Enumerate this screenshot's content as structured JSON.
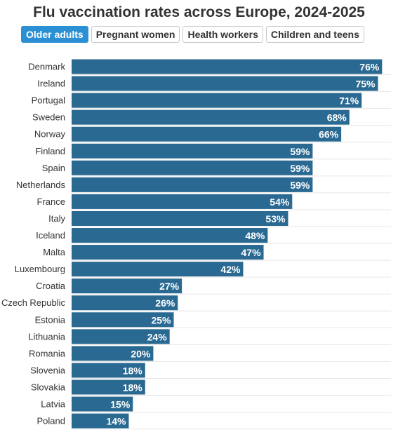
{
  "title": "Flu vaccination rates across Europe, 2024-2025",
  "tabs": [
    {
      "label": "Older adults",
      "active": true
    },
    {
      "label": "Pregnant women",
      "active": false
    },
    {
      "label": "Health workers",
      "active": false
    },
    {
      "label": "Children and teens",
      "active": false
    }
  ],
  "colors": {
    "bar": "#2a6a92",
    "tab_active": "#2b8fd4",
    "grid": "#e6e6e6"
  },
  "chart_data": {
    "type": "bar",
    "orientation": "horizontal",
    "categories": [
      "Denmark",
      "Ireland",
      "Portugal",
      "Sweden",
      "Norway",
      "Finland",
      "Spain",
      "Netherlands",
      "France",
      "Italy",
      "Iceland",
      "Malta",
      "Luxembourg",
      "Croatia",
      "Czech Republic",
      "Estonia",
      "Lithuania",
      "Romania",
      "Slovenia",
      "Slovakia",
      "Latvia",
      "Poland"
    ],
    "values": [
      76,
      75,
      71,
      68,
      66,
      59,
      59,
      59,
      54,
      53,
      48,
      47,
      42,
      27,
      26,
      25,
      24,
      20,
      18,
      18,
      15,
      14
    ],
    "value_labels": [
      "76%",
      "75%",
      "71%",
      "68%",
      "66%",
      "59%",
      "59%",
      "59%",
      "54%",
      "53%",
      "48%",
      "47%",
      "42%",
      "27%",
      "26%",
      "25%",
      "24%",
      "20%",
      "18%",
      "18%",
      "15%",
      "14%"
    ],
    "xlim": [
      0,
      80
    ],
    "grid": true,
    "legend": false
  }
}
